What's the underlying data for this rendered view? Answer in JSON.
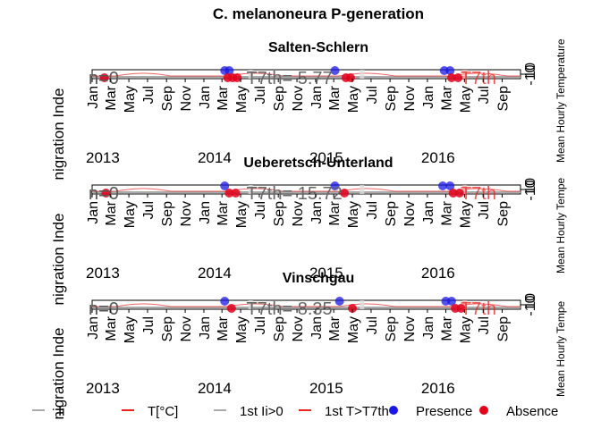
{
  "chart_data": {
    "type": "line",
    "title": "C. melanoneura P-generation",
    "ylabel_left": [
      "nigration Inde",
      "nigration Inde",
      "nigration Inde"
    ],
    "ylabel_right": [
      "Mean Hourly Temperature",
      "Mean Hourly Tempe",
      "Mean Hourly Tempe"
    ],
    "x_tick_labels": [
      "Jan",
      "Mar",
      "May",
      "Jul",
      "Sep",
      "Nov"
    ],
    "x_tick_labels_last_year": [
      "Jan",
      "Mar",
      "May",
      "Jul",
      "Sep"
    ],
    "years": [
      "2013",
      "2014",
      "2015",
      "2016"
    ],
    "right_ticks": [
      "10",
      "-10"
    ],
    "colors": {
      "temperature": "#e8241f",
      "index": "#aaaaaa",
      "presence": "#1a17e6",
      "absence": "#e3001b"
    },
    "panels": [
      {
        "title": "Salten-Schlern",
        "annotation_left": "n=0",
        "annotation_mid": "T7th= 5.77",
        "annotation_right": "T7th",
        "presence_dates": [
          "2014-03-10",
          "2014-03-25",
          "2015-03-05",
          "2016-02-25",
          "2016-03-15"
        ],
        "absence_dates": [
          "2013-02-10",
          "2014-03-20",
          "2014-04-05",
          "2014-04-20",
          "2015-04-10",
          "2015-04-25",
          "2016-03-20",
          "2016-04-10"
        ]
      },
      {
        "title": "Ueberetsch-Unterland",
        "annotation_left": "n=0",
        "annotation_mid": "T7th= 15.72",
        "annotation_right": "T7th",
        "presence_dates": [
          "2014-03-10",
          "2015-03-05",
          "2016-02-20",
          "2016-03-15"
        ],
        "absence_dates": [
          "2013-02-15",
          "2014-03-25",
          "2014-04-15",
          "2015-04-05",
          "2016-03-25",
          "2016-04-15"
        ]
      },
      {
        "title": "Vinschgau",
        "annotation_left": "n=0",
        "annotation_mid": "T7th= 8.35",
        "annotation_right": "T7th",
        "presence_dates": [
          "2014-03-10",
          "2015-03-20",
          "2016-03-01",
          "2016-03-20"
        ],
        "absence_dates": [
          "2014-04-01",
          "2015-05-01",
          "2016-04-01",
          "2016-04-20"
        ]
      }
    ],
    "legend": [
      {
        "label": "Ii",
        "kind": "line",
        "color": "#aaaaaa"
      },
      {
        "label": "T[°C]",
        "kind": "line",
        "color": "#e8241f"
      },
      {
        "label": "1st Ii>0",
        "kind": "line",
        "color": "#aaaaaa"
      },
      {
        "label": "1st T>T7th",
        "kind": "line",
        "color": "#e8241f"
      },
      {
        "label": "Presence",
        "kind": "point",
        "color": "#1a17e6"
      },
      {
        "label": "Absence",
        "kind": "point",
        "color": "#e3001b"
      }
    ]
  }
}
